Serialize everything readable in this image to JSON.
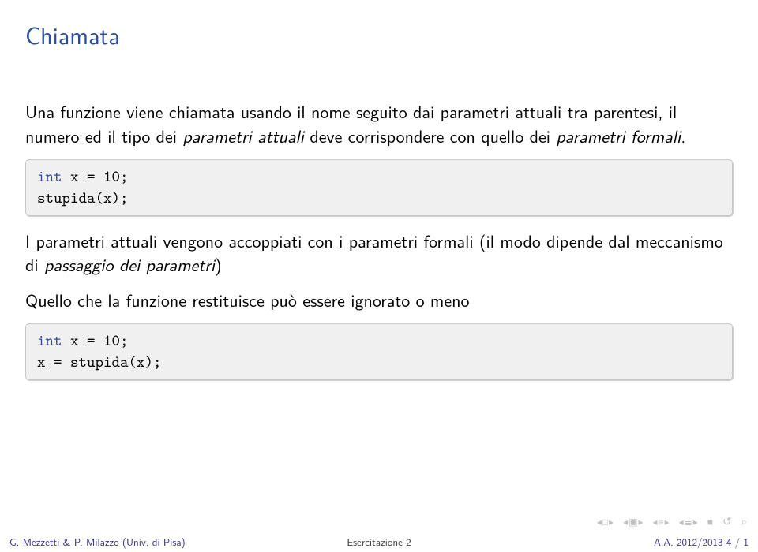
{
  "colors": {
    "title": "#2a4e9b",
    "body": "#000000",
    "code_bg": "#f0f0f0",
    "code_border": "#c7c7c7",
    "code_keyword": "#2a4e9b",
    "footer_text": "#33337a",
    "footer_center": "#404040",
    "nav_icons": "#bfbfbf"
  },
  "title": "Chiamata",
  "para1_a": "Una funzione viene chiamata usando il nome seguito dai parametri attuali tra parentesi, il numero ed il tipo dei ",
  "para1_b": "parametri attuali",
  "para1_c": " deve corrispondere con quello dei ",
  "para1_d": "parametri formali",
  "para1_e": ".",
  "code1": {
    "line1_kw": "int",
    "line1_rest": " x = 10;",
    "line2": "stupida(x);"
  },
  "para2_a": "I parametri attuali vengono accoppiati con i parametri formali (il modo dipende dal meccanismo di ",
  "para2_b": "passaggio dei parametri",
  "para2_c": ")",
  "para3": "Quello che la funzione restituisce può essere ignorato o meno",
  "code2": {
    "line1_kw": "int",
    "line1_rest": " x = 10;",
    "line2": "x = stupida(x);"
  },
  "footer": {
    "left": "G. Mezzetti & P. Milazzo (Univ. di Pisa)",
    "center": "Esercitazione 2",
    "right": "A.A. 2012/2013     4 / 1"
  }
}
